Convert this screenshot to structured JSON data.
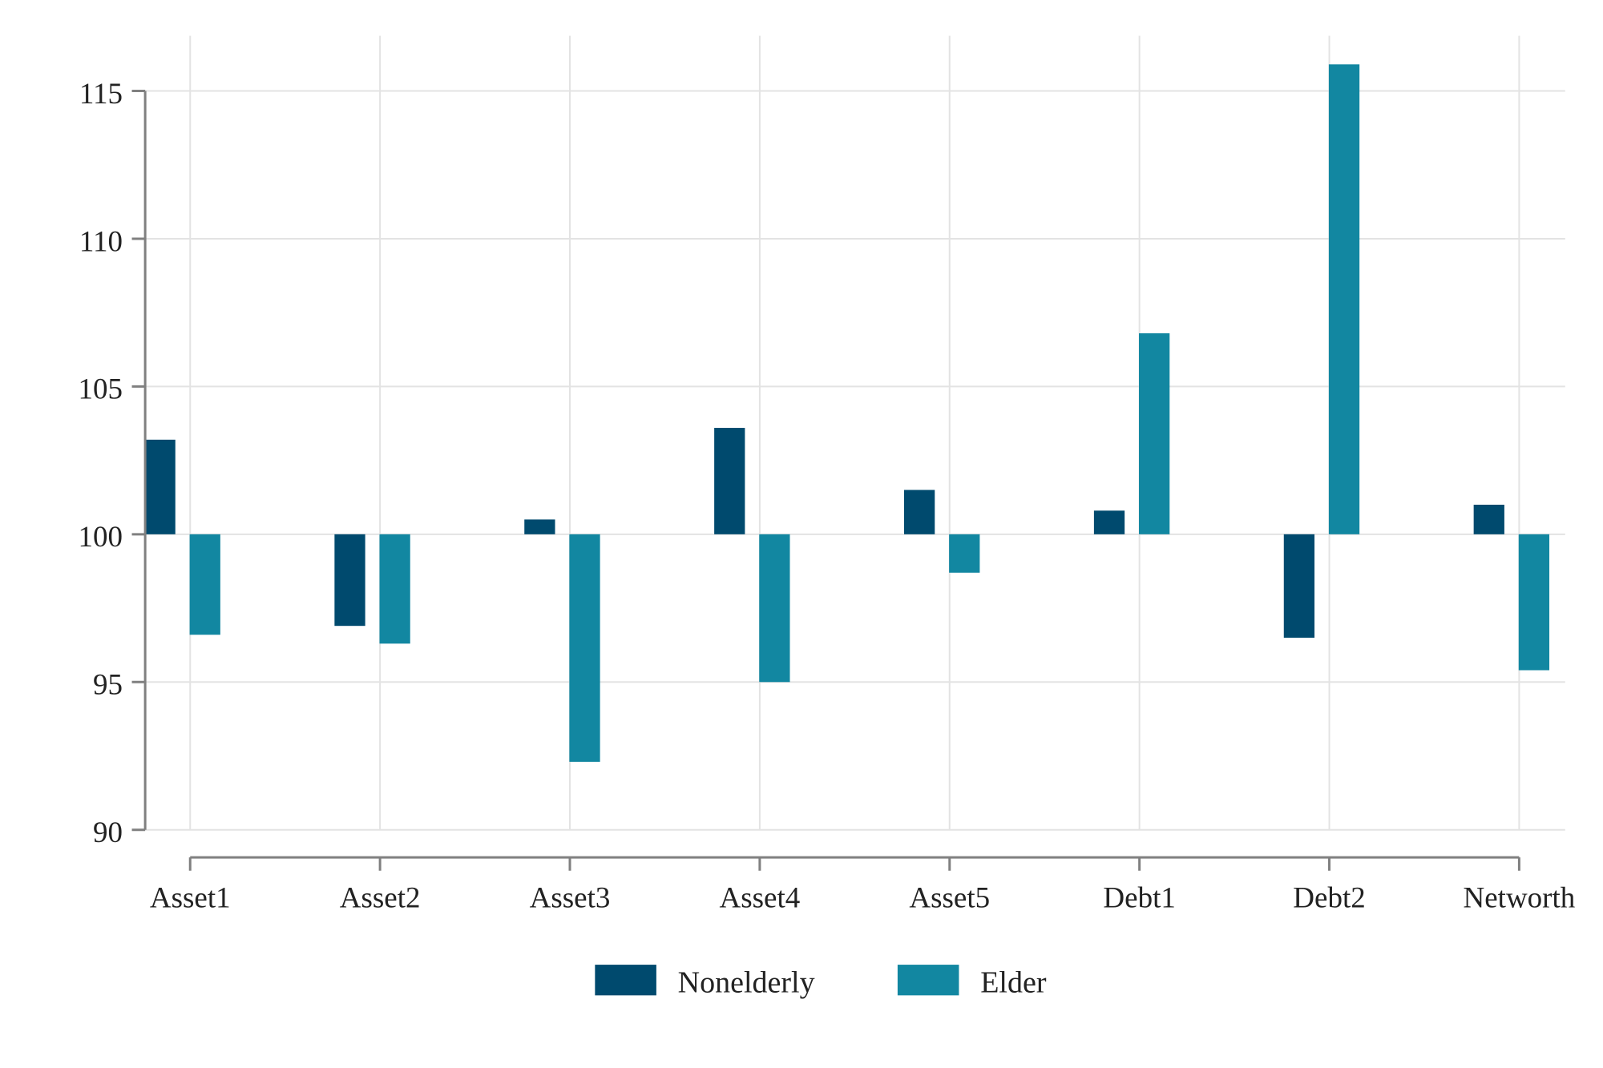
{
  "chart_data": {
    "type": "bar",
    "title": "",
    "xlabel": "",
    "ylabel": "",
    "categories": [
      "Asset1",
      "Asset2",
      "Asset3",
      "Asset4",
      "Asset5",
      "Debt1",
      "Debt2",
      "Networth"
    ],
    "baseline": 100,
    "ylim": [
      90,
      116.5
    ],
    "yticks": [
      90,
      95,
      100,
      105,
      110,
      115
    ],
    "ytick_labels": [
      "90",
      "95",
      "100",
      "105",
      "110",
      "115"
    ],
    "grid": true,
    "legend_position": "bottom-center",
    "series": [
      {
        "name": "Nonelderly",
        "color": "#004a6e",
        "values": [
          103.2,
          96.9,
          100.5,
          103.6,
          101.5,
          100.8,
          96.5,
          101.0
        ]
      },
      {
        "name": "Elder",
        "color": "#1287a1",
        "values": [
          96.6,
          96.3,
          92.3,
          95.0,
          98.7,
          106.8,
          115.9,
          95.4
        ]
      }
    ]
  }
}
